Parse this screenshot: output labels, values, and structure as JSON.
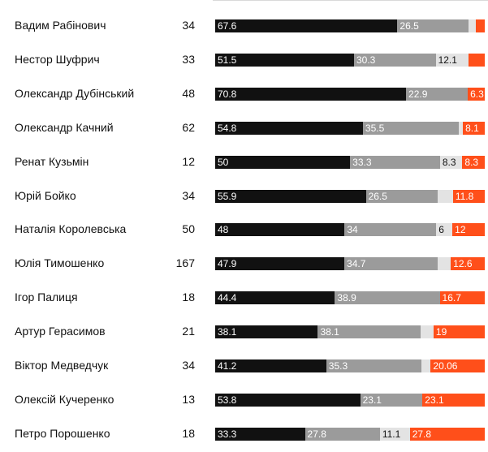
{
  "colors": {
    "series_0": "#111111",
    "series_1": "#9b9b9b",
    "series_2": "#e3e3e3",
    "series_3": "#ff4f1a"
  },
  "chart_data": {
    "type": "bar",
    "orientation": "horizontal",
    "stacked": true,
    "normalized": true,
    "title": "",
    "xlabel": "",
    "ylabel": "",
    "grid": false,
    "legend": "none",
    "categories": [
      "Вадим Рабінович",
      "Нестор Шуфрич",
      "Олександр Дубінський",
      "Олександр Качний",
      "Ренат Кузьмін",
      "Юрій Бойко",
      "Наталія Королевська",
      "Юлія Тимошенко",
      "Ігор Палиця",
      "Артур Герасимов",
      "Віктор Медведчук",
      "Олексій Кучеренко",
      "Петро Порошенко"
    ],
    "counts": [
      "34",
      "33",
      "48",
      "62",
      "12",
      "34",
      "50",
      "167",
      "18",
      "21",
      "34",
      "13",
      "18"
    ],
    "series": [
      {
        "values": [
          67.6,
          51.5,
          70.8,
          54.8,
          50,
          55.9,
          48,
          47.9,
          44.4,
          38.1,
          41.2,
          53.8,
          33.3
        ],
        "labels": [
          "67.6",
          "51.5",
          "70.8",
          "54.8",
          "50",
          "55.9",
          "48",
          "47.9",
          "44.4",
          "38.1",
          "41.2",
          "53.8",
          "33.3"
        ]
      },
      {
        "values": [
          26.5,
          30.3,
          22.9,
          35.5,
          33.3,
          26.5,
          34,
          34.7,
          38.9,
          38.1,
          35.3,
          23.1,
          27.8
        ],
        "labels": [
          "26.5",
          "30.3",
          "22.9",
          "35.5",
          "33.3",
          "26.5",
          "34",
          "34.7",
          "38.9",
          "38.1",
          "35.3",
          "23.1",
          "27.8"
        ]
      },
      {
        "values": [
          2.6,
          12.1,
          0,
          1.6,
          8.3,
          5.8,
          6,
          4.8,
          0,
          4.8,
          3.44,
          0,
          11.1
        ],
        "labels": [
          "",
          "12.1",
          "",
          "",
          "8.3",
          "",
          "6",
          "",
          "",
          "",
          "",
          "",
          "11.1"
        ]
      },
      {
        "values": [
          3.3,
          6.1,
          6.3,
          8.1,
          8.3,
          11.8,
          12,
          12.6,
          16.7,
          19,
          20.06,
          23.1,
          27.8
        ],
        "labels": [
          "",
          "",
          "6.3",
          "8.1",
          "8.3",
          "11.8",
          "12",
          "12.6",
          "16.7",
          "19",
          "20.06",
          "23.1",
          "27.8"
        ]
      }
    ]
  }
}
